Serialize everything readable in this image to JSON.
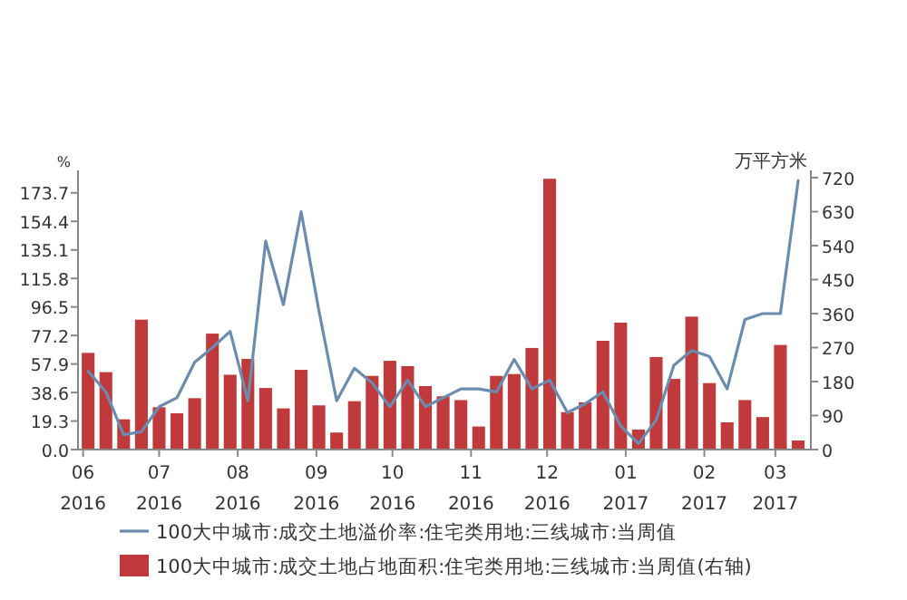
{
  "chart_data": {
    "type": "bar",
    "ylabel": "%",
    "y2label": "万平方米",
    "legend": "bottom",
    "x": [
      "2016-06-03",
      "2016-06-10",
      "2016-06-17",
      "2016-06-24",
      "2016-07-01",
      "2016-07-08",
      "2016-07-15",
      "2016-07-22",
      "2016-07-29",
      "2016-08-05",
      "2016-08-12",
      "2016-08-19",
      "2016-08-26",
      "2016-09-02",
      "2016-09-09",
      "2016-09-16",
      "2016-09-23",
      "2016-09-30",
      "2016-10-07",
      "2016-10-14",
      "2016-10-21",
      "2016-10-28",
      "2016-11-04",
      "2016-11-11",
      "2016-11-18",
      "2016-11-25",
      "2016-12-02",
      "2016-12-09",
      "2016-12-16",
      "2016-12-23",
      "2016-12-30",
      "2017-01-06",
      "2017-01-13",
      "2017-01-20",
      "2017-01-27",
      "2017-02-03",
      "2017-02-10",
      "2017-02-17",
      "2017-02-24",
      "2017-03-03",
      "2017-03-10"
    ],
    "xlim": [
      "2016-05-30",
      "2017-03-15"
    ],
    "xticks": [
      {
        "value": "2016-06-01",
        "label": "06 2016"
      },
      {
        "value": "2016-07-01",
        "label": "07 2016"
      },
      {
        "value": "2016-08-01",
        "label": "08 2016"
      },
      {
        "value": "2016-09-01",
        "label": "09 2016"
      },
      {
        "value": "2016-10-01",
        "label": "10 2016"
      },
      {
        "value": "2016-11-01",
        "label": "11 2016"
      },
      {
        "value": "2016-12-01",
        "label": "12 2016"
      },
      {
        "value": "2017-01-01",
        "label": "01 2017"
      },
      {
        "value": "2017-02-01",
        "label": "02 2017"
      },
      {
        "value": "2017-03-01",
        "label": "03 2017"
      }
    ],
    "ylim": [
      0,
      184
    ],
    "yticks": [
      {
        "value": 0,
        "label": "0.0"
      },
      19.3,
      38.6,
      57.9,
      77.2,
      96.5,
      115.8,
      135.1,
      154.4,
      173.7
    ],
    "y2lim": [
      0,
      720
    ],
    "y2ticks": [
      0,
      90,
      180,
      270,
      360,
      450,
      540,
      630,
      720
    ],
    "series": [
      {
        "name": "100大中城市:成交土地溢价率:住宅类用地:三线城市:当周值",
        "type": "line",
        "color": "#6a8caf",
        "values": [
          53,
          39,
          10,
          12,
          29,
          35,
          59,
          69,
          80,
          33,
          141,
          98,
          161,
          94,
          33,
          55,
          45,
          29,
          47,
          29,
          35,
          41,
          41,
          39,
          61,
          41,
          47,
          25,
          31,
          39,
          16,
          4,
          20,
          57,
          67,
          63,
          41,
          88,
          92,
          92,
          182
        ]
      },
      {
        "name": "100大中城市:成交土地占地面积:住宅类用地:三线城市:当周值(右轴)",
        "axis": "y2",
        "color": "#c0393b",
        "values": [
          256,
          205,
          80,
          344,
          112,
          96,
          136,
          307,
          198,
          240,
          163,
          109,
          211,
          117,
          45,
          128,
          195,
          235,
          221,
          168,
          141,
          131,
          61,
          195,
          200,
          269,
          717,
          99,
          125,
          288,
          336,
          53,
          245,
          187,
          352,
          176,
          72,
          131,
          86,
          277,
          24
        ]
      }
    ]
  }
}
